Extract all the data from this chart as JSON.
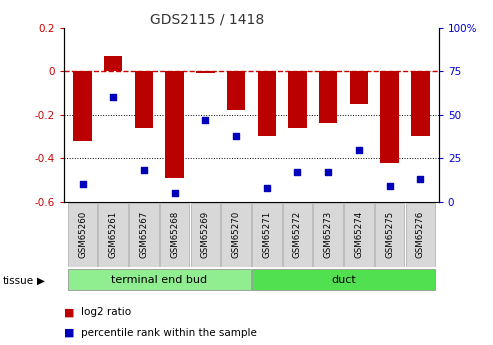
{
  "title": "GDS2115 / 1418",
  "samples": [
    "GSM65260",
    "GSM65261",
    "GSM65267",
    "GSM65268",
    "GSM65269",
    "GSM65270",
    "GSM65271",
    "GSM65272",
    "GSM65273",
    "GSM65274",
    "GSM65275",
    "GSM65276"
  ],
  "log2_ratio": [
    -0.32,
    0.07,
    -0.26,
    -0.49,
    -0.01,
    -0.18,
    -0.3,
    -0.26,
    -0.24,
    -0.15,
    -0.42,
    -0.3
  ],
  "percentile_rank": [
    10,
    60,
    18,
    5,
    47,
    38,
    8,
    17,
    17,
    30,
    9,
    13
  ],
  "groups": [
    {
      "label": "terminal end bud",
      "start": 0,
      "end": 6,
      "color": "#90ee90"
    },
    {
      "label": "duct",
      "start": 6,
      "end": 12,
      "color": "#50e050"
    }
  ],
  "bar_color": "#bb0000",
  "dot_color": "#0000bb",
  "ylim_left": [
    -0.6,
    0.2
  ],
  "ylim_right": [
    0,
    100
  ],
  "zero_line_color": "#cc0000",
  "grid_line_color": "#000000",
  "tissue_label": "tissue",
  "legend_log2": "log2 ratio",
  "legend_pct": "percentile rank within the sample",
  "left_yticks": [
    -0.6,
    -0.4,
    -0.2,
    0.0,
    0.2
  ],
  "left_yticklabels": [
    "-0.6",
    "-0.4",
    "-0.2",
    "0",
    "0.2"
  ],
  "right_yticks": [
    0,
    25,
    50,
    75,
    100
  ],
  "right_yticklabels": [
    "0",
    "25",
    "50",
    "75",
    "100%"
  ]
}
